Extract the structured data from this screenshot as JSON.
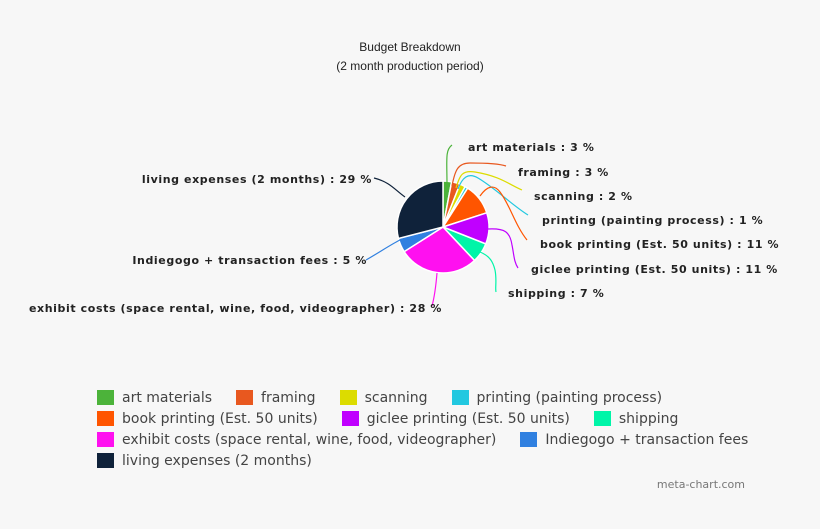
{
  "chart_data": {
    "type": "pie",
    "title": "Budget Breakdown",
    "subtitle": "(2 month production period)",
    "slices": [
      {
        "label": "art materials",
        "value": 3,
        "color": "#4cb33a"
      },
      {
        "label": "framing",
        "value": 3,
        "color": "#e8581f"
      },
      {
        "label": "scanning",
        "value": 2,
        "color": "#dcdc00"
      },
      {
        "label": "printing (painting process)",
        "value": 1,
        "color": "#22c8e0"
      },
      {
        "label": "book printing (Est. 50 units)",
        "value": 11,
        "color": "#ff5500"
      },
      {
        "label": "giclee printing (Est. 50 units)",
        "value": 11,
        "color": "#c000ff"
      },
      {
        "label": "shipping",
        "value": 7,
        "color": "#00f5a8"
      },
      {
        "label": "exhibit costs (space rental, wine, food, videographer)",
        "value": 28,
        "color": "#ff10f0"
      },
      {
        "label": "Indiegogo + transaction fees",
        "value": 5,
        "color": "#3080e0"
      },
      {
        "label": "living expenses (2 months)",
        "value": 29,
        "color": "#0f223a"
      }
    ],
    "unit": "%",
    "legend_position": "bottom"
  },
  "title": "Budget Breakdown",
  "subtitle": "(2 month production period)",
  "credit": "meta-chart.com"
}
